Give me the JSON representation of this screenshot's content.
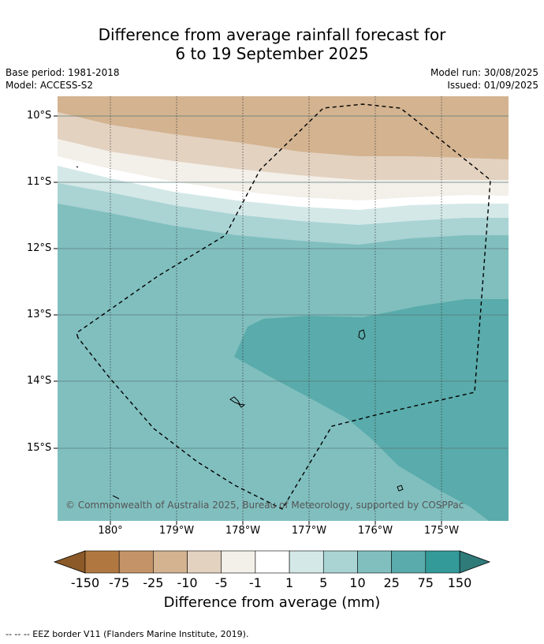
{
  "title": {
    "line1": "Difference from average rainfall forecast for",
    "line2": "6 to 19 September 2025"
  },
  "meta": {
    "base_period": "Base period: 1981-2018",
    "model": "Model: ACCESS-S2",
    "model_run": "Model run: 30/08/2025",
    "issued": "Issued: 01/09/2025"
  },
  "map": {
    "lat_labels": [
      "10°S",
      "11°S",
      "12°S",
      "13°S",
      "14°S",
      "15°S"
    ],
    "lon_labels": [
      "180°",
      "179°W",
      "178°W",
      "177°W",
      "176°W",
      "175°W"
    ],
    "copyright": "© Commonwealth of Australia 2025, Bureau of Meteorology, supported by COSPPac"
  },
  "colorbar": {
    "labels": [
      "-150",
      "-75",
      "-25",
      "-10",
      "-5",
      "-1",
      "1",
      "5",
      "10",
      "25",
      "75",
      "150"
    ],
    "colors": [
      "#8c5a28",
      "#b07840",
      "#c49468",
      "#d3b390",
      "#e3d2c0",
      "#f3efe9",
      "#ffffff",
      "#d4e8e8",
      "#aad3d4",
      "#81bfbf",
      "#5aabab",
      "#339a99",
      "#2f7b7a"
    ],
    "title": "Difference from average (mm)"
  },
  "footnote": "--  --  -- EEZ border V11 (Flanders Marine Institute, 2019)."
}
